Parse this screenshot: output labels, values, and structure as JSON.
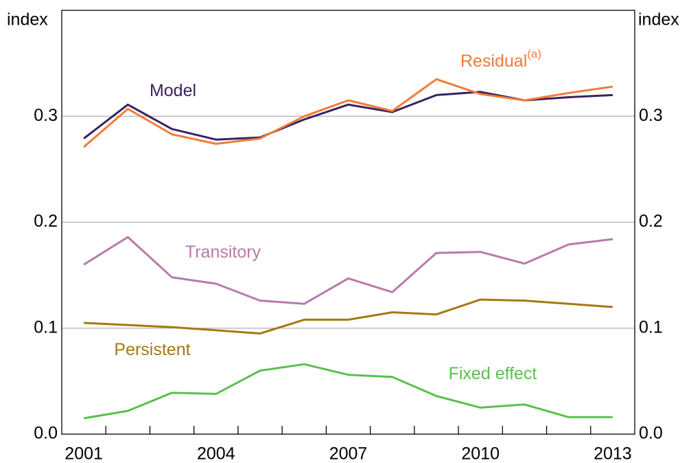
{
  "chart_data": {
    "type": "line",
    "y_label": "index",
    "categories": [
      "2001",
      null,
      null,
      "2004",
      null,
      null,
      "2007",
      null,
      null,
      "2010",
      null,
      null,
      "2013"
    ],
    "ylim": [
      0,
      0.4
    ],
    "yticks": [
      {
        "value": 0,
        "label": "0.0"
      },
      0.1,
      0.2,
      0.3
    ],
    "grid": true,
    "series": [
      {
        "name": "Model",
        "color": "#3a2160",
        "values": [
          0.279,
          0.311,
          0.288,
          0.278,
          0.28,
          0.297,
          0.311,
          0.304,
          0.32,
          0.323,
          0.315,
          0.318,
          0.32
        ]
      },
      {
        "name": "Residual",
        "name_superscript": "(a)",
        "color": "#f47a36",
        "values": [
          0.271,
          0.307,
          0.283,
          0.274,
          0.279,
          0.3,
          0.315,
          0.305,
          0.335,
          0.321,
          0.315,
          0.322,
          0.328
        ]
      },
      {
        "name": "Transitory",
        "color": "#b77aa9",
        "values": [
          0.16,
          0.186,
          0.148,
          0.142,
          0.126,
          0.123,
          0.147,
          0.134,
          0.171,
          0.172,
          0.161,
          0.179,
          0.184
        ]
      },
      {
        "name": "Persistent",
        "color": "#a37a10",
        "values": [
          0.105,
          0.103,
          0.101,
          0.098,
          0.095,
          0.108,
          0.108,
          0.115,
          0.113,
          0.127,
          0.126,
          0.123,
          0.12
        ]
      },
      {
        "name": "Fixed effect",
        "color": "#5bbf4f",
        "values": [
          0.015,
          0.022,
          0.039,
          0.038,
          0.06,
          0.066,
          0.056,
          0.054,
          0.036,
          0.025,
          0.028,
          0.016,
          0.016
        ]
      }
    ]
  }
}
